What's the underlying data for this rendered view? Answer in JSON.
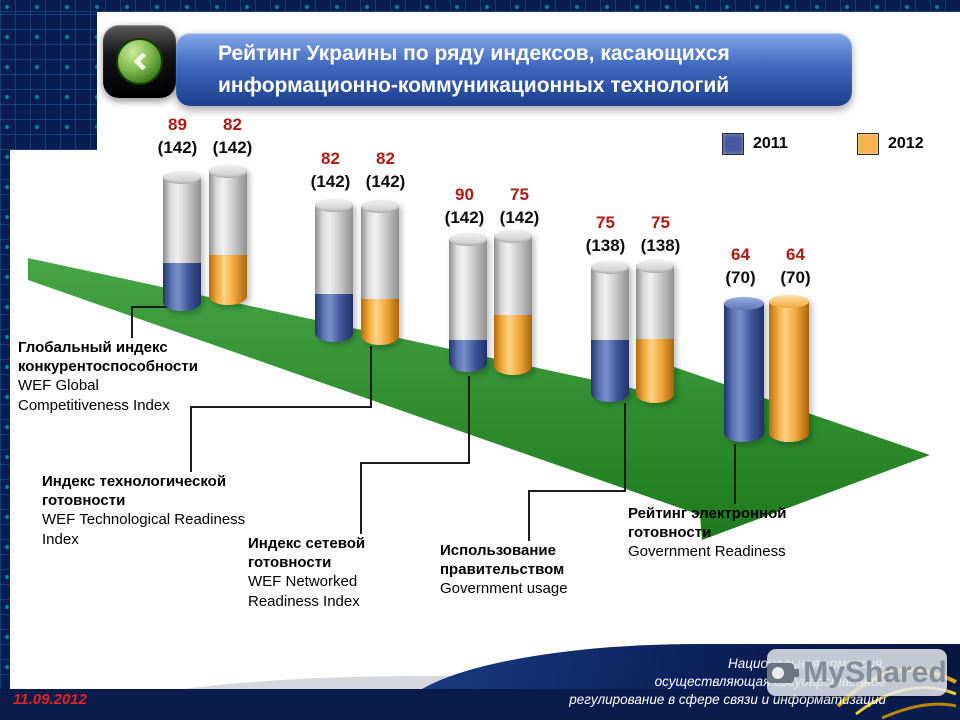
{
  "header": {
    "title_line1": "Рейтинг Украины по ряду индексов, касающихся",
    "title_line2": "информационно-коммуникационных технологий"
  },
  "legend": {
    "items": [
      {
        "label": "2011",
        "color": "#46589e"
      },
      {
        "label": "2012",
        "color": "#f6b04e"
      }
    ]
  },
  "chart_data": {
    "type": "bar",
    "style": "paired-cylinder-ranking-on-green-arrow",
    "title": "Рейтинг Украины по ряду индексов, касающихся информационно-коммуникационных технологий",
    "legend_position": "top-right",
    "label_format": "rank (total countries)",
    "categories_ru": [
      "Глобальный индекс конкурентоспособности",
      "Индекс технологической готовности",
      "Индекс сетевой готовности",
      "Использование правительством",
      "Рейтинг электронной готовности"
    ],
    "categories_en": [
      "WEF Global Competitiveness Index",
      "WEF Technological Readiness Index",
      "WEF Networked Readiness Index",
      "Government usage",
      "Government Readiness"
    ],
    "series": [
      {
        "name": "2011",
        "color": "#46589e",
        "ranks": [
          89,
          82,
          90,
          75,
          64
        ]
      },
      {
        "name": "2012",
        "color": "#f6b04e",
        "ranks": [
          82,
          82,
          75,
          75,
          64
        ]
      }
    ],
    "totals": [
      142,
      142,
      142,
      138,
      70
    ]
  },
  "footer": {
    "date": "11.09.2012",
    "org_lines": [
      "Национальная комиссия,",
      "осуществляющая государственное",
      "регулирование в сфере связи и информатизации"
    ]
  },
  "watermark": {
    "text": "MyShared"
  }
}
